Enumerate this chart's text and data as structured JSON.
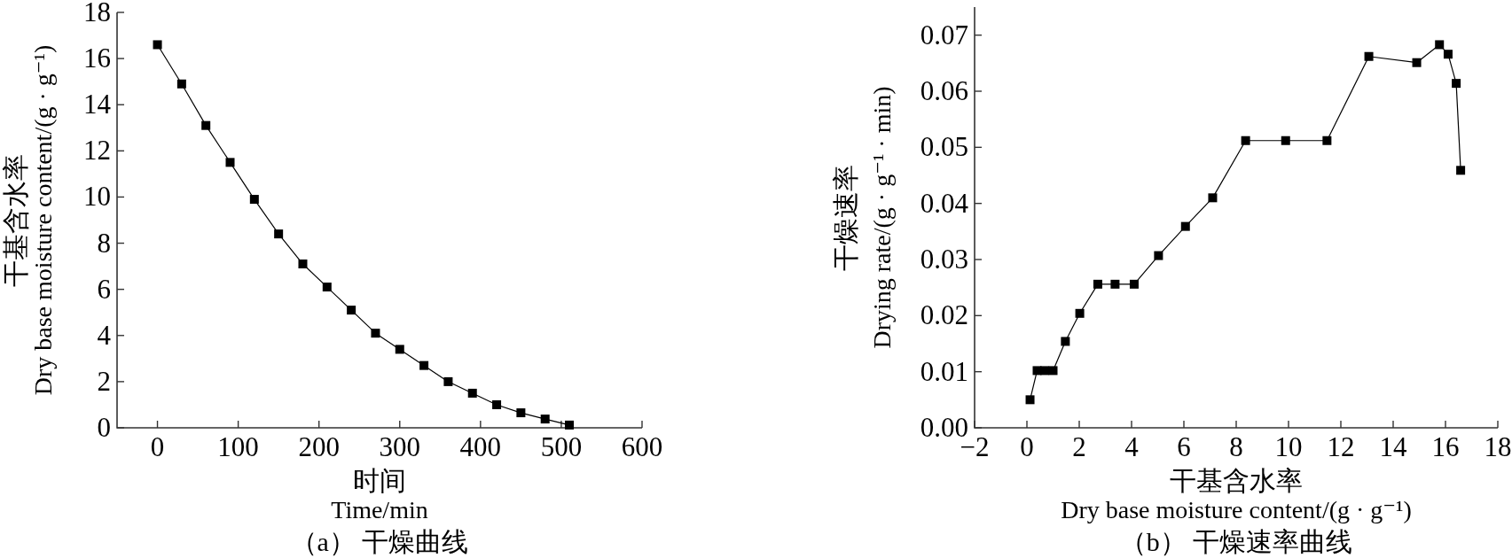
{
  "chart_data": [
    {
      "type": "line",
      "title": "（a） 干燥曲线",
      "xlabel": "时间\nTime/min",
      "ylabel": "干基含水率\nDry base moisture content/(g · g⁻¹)",
      "x": [
        0,
        30,
        60,
        90,
        120,
        150,
        180,
        210,
        240,
        270,
        300,
        330,
        360,
        390,
        420,
        450,
        480,
        510
      ],
      "values": [
        16.6,
        14.9,
        13.1,
        11.5,
        9.9,
        8.4,
        7.1,
        6.1,
        5.1,
        4.1,
        3.4,
        2.7,
        2.0,
        1.5,
        1.0,
        0.65,
        0.38,
        0.12
      ],
      "color": "#000000",
      "marker": "square",
      "line_style": "solid",
      "xlim": [
        -50,
        600
      ],
      "xticks": [
        0,
        100,
        200,
        300,
        400,
        500,
        600
      ],
      "ylim": [
        0,
        18
      ],
      "yticks": [
        0,
        2,
        4,
        6,
        8,
        10,
        12,
        14,
        16,
        18
      ]
    },
    {
      "type": "line",
      "title": "（b） 干燥速率曲线",
      "xlabel": "干基含水率\nDry base moisture content/(g · g⁻¹)",
      "ylabel": "干燥速率\nDrying rate/(g · g⁻¹ · min)",
      "x": [
        0.12,
        0.39,
        0.68,
        1.0,
        1.47,
        2.02,
        2.71,
        3.37,
        4.1,
        5.03,
        6.06,
        7.1,
        8.36,
        9.89,
        11.47,
        13.07,
        14.9,
        15.77,
        16.1,
        16.41,
        16.58
      ],
      "values": [
        0.005,
        0.0102,
        0.0102,
        0.0102,
        0.0154,
        0.0204,
        0.0256,
        0.0256,
        0.0256,
        0.0307,
        0.0359,
        0.041,
        0.0512,
        0.0512,
        0.0512,
        0.0662,
        0.0651,
        0.0683,
        0.0666,
        0.0614,
        0.0459
      ],
      "color": "#000000",
      "marker": "square",
      "line_style": "solid",
      "xlim": [
        -2,
        18
      ],
      "xticks": [
        {
          "value": -2,
          "label": "−2"
        },
        0,
        2,
        4,
        6,
        8,
        10,
        12,
        14,
        16,
        18
      ],
      "ylim": [
        0,
        0.075
      ],
      "yticks": [
        {
          "value": 0,
          "label": "0.00"
        },
        0.01,
        0.02,
        0.03,
        0.04,
        0.05,
        0.06,
        0.07
      ]
    }
  ]
}
